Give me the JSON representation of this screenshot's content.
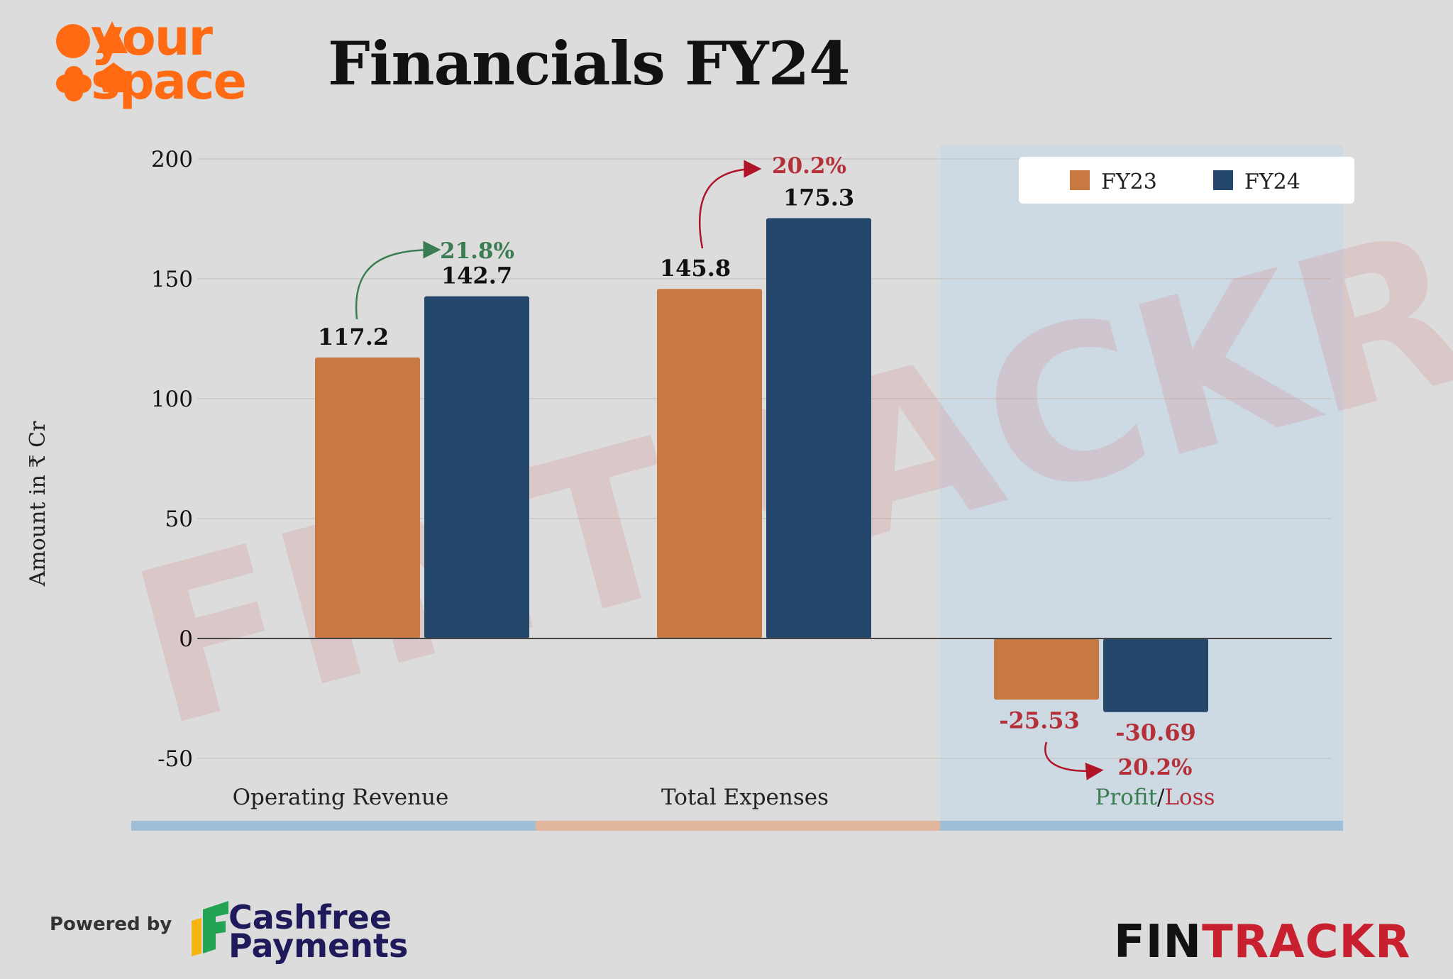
{
  "brand": {
    "line1": "your",
    "line2": "space"
  },
  "title": "Financials FY24",
  "watermark": "FINTRACKR",
  "colors": {
    "fy23": "#c87941",
    "fy24": "#24476b",
    "positive": "#3b7d52",
    "negative": "#b4313a",
    "brand_orange": "#ff6a13"
  },
  "chart_data": {
    "type": "bar",
    "title": "Financials FY24",
    "ylabel": "Amount in ₹ Cr",
    "xlabel": "",
    "ylim": [
      -50,
      200
    ],
    "yticks": [
      200,
      150,
      100,
      50,
      0,
      -50
    ],
    "categories": [
      "Operating Revenue",
      "Total Expenses",
      "Profit/Loss"
    ],
    "series": [
      {
        "name": "FY23",
        "values": [
          117.2,
          145.8,
          -25.53
        ],
        "labels": [
          "117.2",
          "145.8",
          "-25.53"
        ]
      },
      {
        "name": "FY24",
        "values": [
          142.7,
          175.3,
          -30.69
        ],
        "labels": [
          "142.7",
          "175.3",
          "-30.69"
        ]
      }
    ],
    "changes": [
      "21.8%",
      "20.2%",
      "20.2%"
    ],
    "category_label_parts": {
      "profit": "Profit",
      "sep": "/",
      "loss": "Loss"
    },
    "legend_position": "top-right",
    "grid": true
  },
  "footer": {
    "powered_by": "Powered by",
    "cashfree_line1": "Cashfree",
    "cashfree_line2": "Payments",
    "fintrackr_a": "FIN",
    "fintrackr_b": "TRACKR"
  }
}
